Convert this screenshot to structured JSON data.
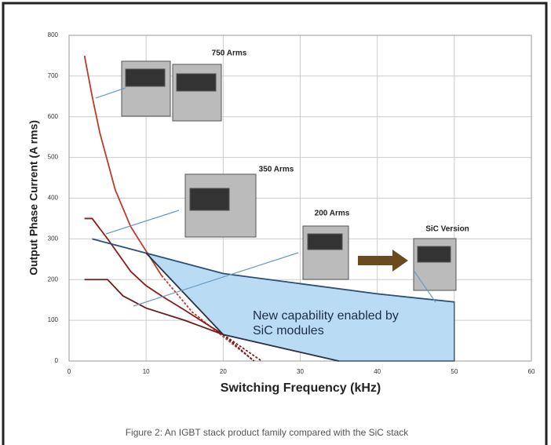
{
  "chart_data": {
    "type": "line",
    "xlabel": "Switching Frequency (kHz)",
    "ylabel": "Output Phase Current (A rms)",
    "caption": "Figure 2: An IGBT stack product family compared with the SiC stack",
    "annotation": [
      "New capability enabled by",
      "SiC modules"
    ],
    "xlim": [
      0,
      60
    ],
    "xticks": [
      0,
      10,
      20,
      30,
      40,
      50,
      60
    ],
    "ylim": [
      0,
      800
    ],
    "yticks": [
      0,
      100,
      200,
      300,
      400,
      500,
      600,
      700,
      800
    ],
    "grid": true,
    "region": {
      "color": "#b9dcf4",
      "x": [
        10,
        20,
        30,
        40,
        50,
        50,
        35,
        20,
        10
      ],
      "y": [
        265,
        215,
        190,
        165,
        145,
        0,
        0,
        65,
        265
      ]
    },
    "series": [
      {
        "name": "750 Arms",
        "color": "#c0392b",
        "x": [
          2,
          3,
          4,
          6,
          8,
          10,
          12
        ],
        "values": [
          750,
          650,
          560,
          420,
          330,
          270,
          210
        ]
      },
      {
        "color": "#c0392b",
        "dash": true,
        "x": [
          12,
          16,
          20,
          24
        ],
        "values": [
          210,
          120,
          60,
          0
        ]
      },
      {
        "name": "350 Arms",
        "color": "#8b1a1a",
        "x": [
          2,
          3,
          5,
          8,
          10,
          12,
          15,
          20
        ],
        "values": [
          350,
          350,
          300,
          220,
          185,
          160,
          125,
          65
        ]
      },
      {
        "color": "#8b1a1a",
        "dash": true,
        "x": [
          20,
          25
        ],
        "values": [
          65,
          0
        ]
      },
      {
        "name": "200 Arms",
        "color": "#6e1a1a",
        "x": [
          2,
          5,
          7,
          10,
          15,
          20
        ],
        "values": [
          200,
          200,
          160,
          130,
          100,
          65
        ]
      },
      {
        "color": "#6e1a1a",
        "dash": true,
        "x": [
          20,
          24
        ],
        "values": [
          65,
          0
        ]
      },
      {
        "name": "SiC Version",
        "color": "#2c4f7c",
        "x": [
          3,
          10,
          20,
          30,
          40,
          50
        ],
        "values": [
          300,
          265,
          215,
          190,
          165,
          145
        ]
      },
      {
        "color": "#2a3445",
        "x": [
          10,
          20,
          35
        ],
        "values": [
          265,
          65,
          0
        ]
      }
    ]
  }
}
